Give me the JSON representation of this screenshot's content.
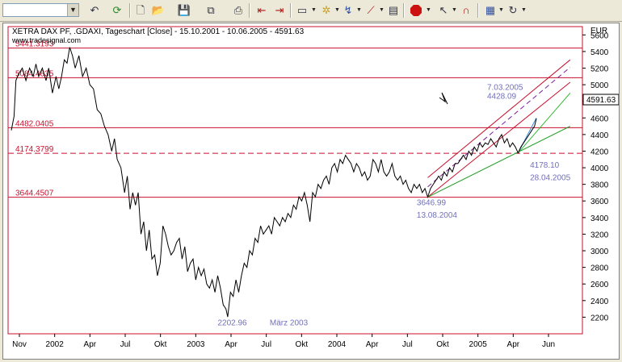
{
  "toolbar": {
    "symbol_value": "",
    "buttons": [
      "undo-icon",
      "refresh-icon",
      "new-doc-icon",
      "open-folder-icon",
      "save-icon",
      "copy-icon",
      "print-icon",
      "back-icon",
      "forward-icon",
      "chart-window-icon",
      "indicator-icon",
      "drawing-tools-icon",
      "trend-line-icon",
      "properties-icon",
      "stop-icon",
      "pointer-icon",
      "magnet-icon",
      "template-icon",
      "redo-icon"
    ]
  },
  "chart_data": {
    "type": "line",
    "title": "XETRA DAX PF, .GDAXI, Tageschart [Close] - 15.10.2001 - 10.06.2005 - 4591.63",
    "watermark": "www.tradesignal.com",
    "ylabel": "EUR",
    "ylim": [
      2000,
      5700
    ],
    "y_ticks": [
      2200,
      2400,
      2600,
      2800,
      3000,
      3200,
      3400,
      3600,
      3800,
      4000,
      4200,
      4400,
      4600,
      4800,
      5000,
      5200,
      5400,
      5600
    ],
    "x_ticks": [
      "Nov",
      "2002",
      "Apr",
      "Jul",
      "Okt",
      "2003",
      "Apr",
      "Jul",
      "Okt",
      "2004",
      "Apr",
      "Jul",
      "Okt",
      "2005",
      "Apr",
      "Jun"
    ],
    "last_value": "4591.63",
    "colors": {
      "price": "#000000",
      "levels": "#c8102e",
      "annotations": "#7070bb",
      "support": "#1a9a1a",
      "support2": "#33bb33",
      "trend": "#3a8fd8",
      "channel_mid": "#7a1a9a"
    },
    "horizontal_levels": [
      {
        "value": 5441.3193,
        "label": "5441.3193",
        "dashed": false
      },
      {
        "value": 5084.4835,
        "label": "5084.4835",
        "dashed": false
      },
      {
        "value": 4482.0405,
        "label": "4482.0405",
        "dashed": false
      },
      {
        "value": 4174.3799,
        "label": "4174.3799",
        "dashed": true
      },
      {
        "value": 3644.4507,
        "label": "3644.4507",
        "dashed": false
      }
    ],
    "series": [
      {
        "values": [
          [
            0,
            4450
          ],
          [
            3,
            4620
          ],
          [
            5,
            5050
          ],
          [
            8,
            5130
          ],
          [
            12,
            5200
          ],
          [
            16,
            5050
          ],
          [
            20,
            5200
          ],
          [
            24,
            5100
          ],
          [
            27,
            5250
          ],
          [
            30,
            5100
          ],
          [
            34,
            5200
          ],
          [
            38,
            5050
          ],
          [
            41,
            5200
          ],
          [
            45,
            4900
          ],
          [
            49,
            5100
          ],
          [
            52,
            4950
          ],
          [
            55,
            5100
          ],
          [
            58,
            5300
          ],
          [
            61,
            5260
          ],
          [
            64,
            5450
          ],
          [
            67,
            5350
          ],
          [
            70,
            5200
          ],
          [
            74,
            5350
          ],
          [
            78,
            5100
          ],
          [
            82,
            5200
          ],
          [
            86,
            5000
          ],
          [
            90,
            4950
          ],
          [
            94,
            4700
          ],
          [
            98,
            4650
          ],
          [
            102,
            4500
          ],
          [
            106,
            4400
          ],
          [
            110,
            4200
          ],
          [
            113,
            4350
          ],
          [
            116,
            4100
          ],
          [
            120,
            4000
          ],
          [
            124,
            3700
          ],
          [
            127,
            3900
          ],
          [
            130,
            3500
          ],
          [
            133,
            3700
          ],
          [
            136,
            3550
          ],
          [
            139,
            3700
          ],
          [
            142,
            3200
          ],
          [
            145,
            3350
          ],
          [
            148,
            3000
          ],
          [
            151,
            3250
          ],
          [
            154,
            2900
          ],
          [
            157,
            2950
          ],
          [
            160,
            2700
          ],
          [
            163,
            2850
          ],
          [
            166,
            3300
          ],
          [
            169,
            3200
          ],
          [
            172,
            3050
          ],
          [
            175,
            2950
          ],
          [
            178,
            3000
          ],
          [
            181,
            3100
          ],
          [
            184,
            3150
          ],
          [
            187,
            2900
          ],
          [
            190,
            3050
          ],
          [
            193,
            2750
          ],
          [
            196,
            2850
          ],
          [
            199,
            2900
          ],
          [
            202,
            2650
          ],
          [
            205,
            2800
          ],
          [
            208,
            2700
          ],
          [
            211,
            2780
          ],
          [
            214,
            2600
          ],
          [
            217,
            2550
          ],
          [
            220,
            2650
          ],
          [
            223,
            2500
          ],
          [
            226,
            2700
          ],
          [
            229,
            2550
          ],
          [
            232,
            2350
          ],
          [
            235,
            2300
          ],
          [
            237,
            2202.96
          ],
          [
            240,
            2500
          ],
          [
            243,
            2450
          ],
          [
            246,
            2650
          ],
          [
            249,
            2500
          ],
          [
            252,
            2700
          ],
          [
            255,
            2850
          ],
          [
            258,
            2800
          ],
          [
            261,
            3000
          ],
          [
            264,
            2950
          ],
          [
            267,
            3150
          ],
          [
            270,
            3100
          ],
          [
            273,
            3300
          ],
          [
            276,
            3200
          ],
          [
            279,
            3250
          ],
          [
            282,
            3300
          ],
          [
            285,
            3200
          ],
          [
            288,
            3400
          ],
          [
            291,
            3350
          ],
          [
            294,
            3300
          ],
          [
            297,
            3400
          ],
          [
            300,
            3350
          ],
          [
            303,
            3450
          ],
          [
            306,
            3400
          ],
          [
            309,
            3550
          ],
          [
            312,
            3500
          ],
          [
            315,
            3650
          ],
          [
            318,
            3600
          ],
          [
            321,
            3700
          ],
          [
            324,
            3550
          ],
          [
            327,
            3350
          ],
          [
            330,
            3700
          ],
          [
            333,
            3650
          ],
          [
            336,
            3800
          ],
          [
            339,
            3750
          ],
          [
            342,
            3850
          ],
          [
            345,
            3900
          ],
          [
            348,
            3800
          ],
          [
            351,
            4000
          ],
          [
            354,
            4050
          ],
          [
            357,
            3950
          ],
          [
            360,
            4100
          ],
          [
            363,
            4050
          ],
          [
            366,
            4150
          ],
          [
            369,
            4100
          ],
          [
            372,
            4050
          ],
          [
            375,
            3950
          ],
          [
            378,
            4050
          ],
          [
            381,
            4000
          ],
          [
            384,
            3900
          ],
          [
            387,
            3950
          ],
          [
            390,
            3850
          ],
          [
            393,
            3900
          ],
          [
            396,
            4100
          ],
          [
            399,
            4050
          ],
          [
            402,
            3950
          ],
          [
            405,
            4100
          ],
          [
            408,
            3950
          ],
          [
            411,
            3900
          ],
          [
            414,
            3950
          ],
          [
            417,
            4050
          ],
          [
            420,
            3900
          ],
          [
            423,
            3850
          ],
          [
            426,
            3900
          ],
          [
            429,
            3800
          ],
          [
            432,
            3850
          ],
          [
            435,
            3750
          ],
          [
            438,
            3700
          ],
          [
            441,
            3800
          ],
          [
            444,
            3750
          ],
          [
            447,
            3800
          ],
          [
            450,
            3700
          ],
          [
            453,
            3750
          ],
          [
            456,
            3646.99
          ],
          [
            459,
            3750
          ],
          [
            462,
            3800
          ],
          [
            465,
            3850
          ],
          [
            468,
            3900
          ],
          [
            471,
            3850
          ],
          [
            474,
            3950
          ],
          [
            477,
            3900
          ],
          [
            480,
            4000
          ],
          [
            483,
            3950
          ],
          [
            486,
            4050
          ],
          [
            489,
            4050
          ],
          [
            492,
            4100
          ],
          [
            495,
            4150
          ],
          [
            498,
            4100
          ],
          [
            501,
            4200
          ],
          [
            504,
            4150
          ],
          [
            507,
            4250
          ],
          [
            510,
            4200
          ],
          [
            513,
            4300
          ],
          [
            516,
            4250
          ],
          [
            519,
            4300
          ],
          [
            522,
            4280
          ],
          [
            525,
            4350
          ],
          [
            528,
            4300
          ],
          [
            531,
            4250
          ],
          [
            534,
            4350
          ],
          [
            537,
            4400
          ],
          [
            540,
            4300
          ],
          [
            543,
            4350
          ],
          [
            546,
            4250
          ],
          [
            549,
            4300
          ],
          [
            552,
            4250
          ],
          [
            555,
            4178.1
          ],
          [
            558,
            4250
          ],
          [
            561,
            4300
          ],
          [
            564,
            4350
          ],
          [
            567,
            4400
          ],
          [
            570,
            4450
          ],
          [
            573,
            4500
          ],
          [
            575,
            4591.63
          ]
        ]
      }
    ],
    "x_domain": [
      0,
      575
    ],
    "annotations": [
      {
        "text": "7.03.2005",
        "x": 521,
        "y": 4940
      },
      {
        "text": "4428.09",
        "x": 521,
        "y": 4830
      },
      {
        "text": "4178.10",
        "x": 568,
        "y": 4000
      },
      {
        "text": "28.04.2005",
        "x": 568,
        "y": 3850
      },
      {
        "text": "3646.99",
        "x": 444,
        "y": 3550
      },
      {
        "text": "13.08.2004",
        "x": 444,
        "y": 3400
      },
      {
        "text": "2202.96",
        "x": 226,
        "y": 2100
      },
      {
        "text": "März 2003",
        "x": 283,
        "y": 2100
      }
    ],
    "trend_lines": [
      {
        "kind": "channel_upper",
        "from": [
          456,
          3880
        ],
        "to": [
          612,
          5300
        ]
      },
      {
        "kind": "channel_mid",
        "from": [
          456,
          3770
        ],
        "to": [
          612,
          5210
        ]
      },
      {
        "kind": "channel_lower",
        "from": [
          456,
          3646.99
        ],
        "to": [
          612,
          5030
        ]
      },
      {
        "kind": "support",
        "from": [
          456,
          3646.99
        ],
        "to": [
          612,
          4500
        ]
      },
      {
        "kind": "support2",
        "from": [
          555,
          4178.1
        ],
        "to": [
          612,
          4900
        ]
      },
      {
        "kind": "trend",
        "from": [
          555,
          4178.1
        ],
        "to": [
          575,
          4600
        ]
      }
    ]
  }
}
